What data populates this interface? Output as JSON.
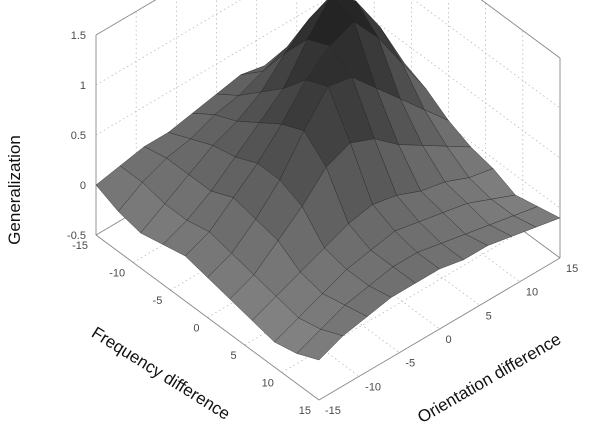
{
  "chart_data": {
    "type": "surface",
    "title": "",
    "xlabel": "Orientation difference",
    "ylabel": "Frequency difference",
    "zlabel": "Generalization",
    "x_ticks": [
      "-15",
      "-10",
      "-5",
      "0",
      "5",
      "10",
      "15"
    ],
    "y_ticks": [
      "-15",
      "-10",
      "-5",
      "0",
      "5",
      "10",
      "15"
    ],
    "z_ticks": [
      "-0.5",
      "0",
      "0.5",
      "1",
      "1.5"
    ],
    "xlim": [
      -15,
      15
    ],
    "ylim": [
      -15,
      15
    ],
    "zlim": [
      -0.5,
      1.5
    ],
    "grid": true,
    "colormap": "gray",
    "x": [
      -15,
      -12,
      -9,
      -6,
      -3,
      0,
      3,
      6,
      9,
      12,
      15
    ],
    "y": [
      -15,
      -12,
      -9,
      -6,
      -3,
      0,
      3,
      6,
      9,
      12,
      15
    ],
    "z": [
      [
        0.0,
        0.05,
        0.1,
        0.1,
        0.15,
        0.2,
        0.25,
        0.2,
        0.15,
        0.1,
        0.0
      ],
      [
        -0.1,
        0.05,
        0.15,
        0.2,
        0.3,
        0.35,
        0.45,
        0.55,
        0.45,
        0.3,
        0.1
      ],
      [
        -0.15,
        0.0,
        0.15,
        0.3,
        0.4,
        0.55,
        0.8,
        1.0,
        0.9,
        0.6,
        0.2
      ],
      [
        -0.1,
        0.0,
        0.15,
        0.35,
        0.55,
        0.75,
        1.1,
        1.4,
        1.2,
        0.8,
        0.3
      ],
      [
        -0.05,
        0.05,
        0.25,
        0.45,
        0.7,
        1.0,
        1.2,
        1.3,
        1.0,
        0.6,
        0.2
      ],
      [
        -0.1,
        0.0,
        0.2,
        0.45,
        0.8,
        1.1,
        1.05,
        0.8,
        0.55,
        0.3,
        0.05
      ],
      [
        -0.15,
        -0.05,
        0.15,
        0.35,
        0.6,
        0.7,
        0.6,
        0.4,
        0.25,
        0.1,
        -0.05
      ],
      [
        -0.2,
        -0.1,
        0.0,
        0.1,
        0.2,
        0.25,
        0.2,
        0.1,
        0.05,
        -0.05,
        -0.1
      ],
      [
        -0.25,
        -0.15,
        -0.05,
        0.05,
        0.1,
        0.15,
        0.1,
        0.05,
        0.0,
        -0.1,
        -0.2
      ],
      [
        -0.2,
        -0.1,
        0.0,
        0.05,
        0.1,
        0.1,
        0.05,
        0.0,
        -0.05,
        -0.1,
        -0.15
      ],
      [
        -0.1,
        0.0,
        0.05,
        0.1,
        0.1,
        0.1,
        0.05,
        0.05,
        0.0,
        -0.05,
        -0.1
      ]
    ]
  }
}
